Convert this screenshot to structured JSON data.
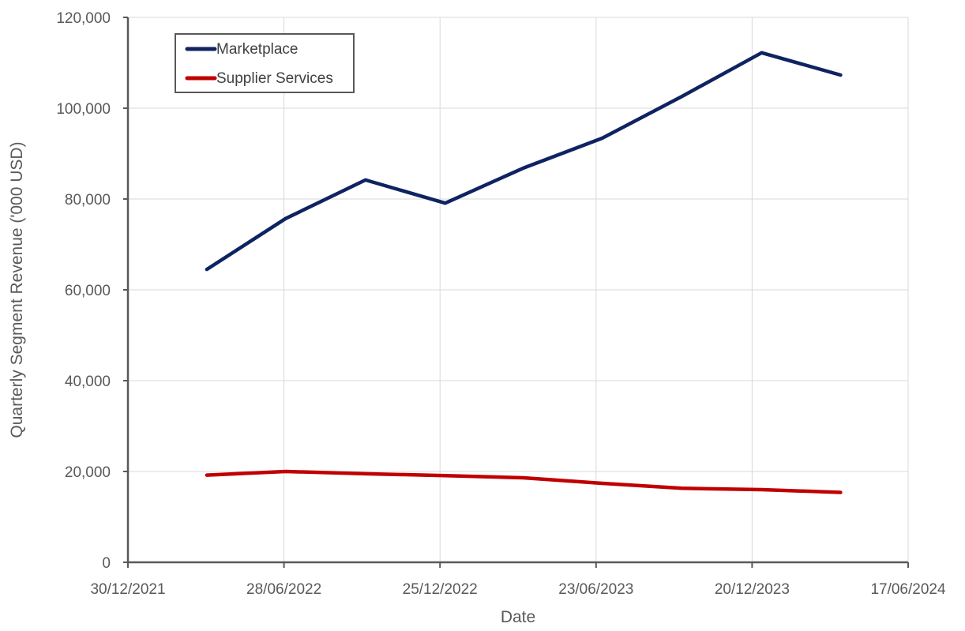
{
  "chart_data": {
    "type": "line",
    "title": "",
    "xlabel": "Date",
    "ylabel": "Quarterly Segment Revenue ('000 USD)",
    "ylim": [
      0,
      120000
    ],
    "y_ticks": [
      "0",
      "20,000",
      "40,000",
      "60,000",
      "80,000",
      "100,000",
      "120,000"
    ],
    "x_ticks": [
      "30/12/2021",
      "28/06/2022",
      "25/12/2022",
      "23/06/2023",
      "20/12/2023",
      "17/06/2024"
    ],
    "x_tick_days": [
      0,
      180,
      360,
      540,
      720,
      900
    ],
    "grid": true,
    "legend_position": "upper-left-inside",
    "x": [
      "31/03/2022",
      "30/06/2022",
      "30/09/2022",
      "31/12/2022",
      "31/03/2023",
      "30/06/2023",
      "30/09/2023",
      "31/12/2023",
      "31/03/2024"
    ],
    "x_days": [
      91,
      182,
      274,
      366,
      456,
      547,
      639,
      731,
      822
    ],
    "series": [
      {
        "name": "Marketplace",
        "color": "#0f2361",
        "values": [
          64500,
          75700,
          84200,
          79100,
          86800,
          93400,
          102600,
          112200,
          107300
        ]
      },
      {
        "name": "Supplier Services",
        "color": "#c00000",
        "values": [
          19200,
          20000,
          19500,
          19100,
          18600,
          17400,
          16300,
          16000,
          15400
        ]
      }
    ]
  },
  "legend": {
    "items": [
      {
        "label": "Marketplace",
        "color": "#0f2361"
      },
      {
        "label": "Supplier Services",
        "color": "#c00000"
      }
    ]
  }
}
